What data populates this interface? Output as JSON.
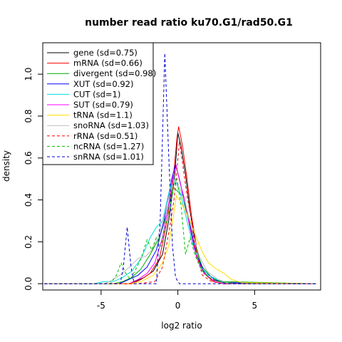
{
  "chart_data": {
    "type": "line",
    "title": "number read ratio ku70.G1/rad50.G1",
    "xlabel": "log2 ratio",
    "ylabel": "density",
    "xlim": [
      -8.8,
      9.3
    ],
    "ylim": [
      -0.03,
      1.15
    ],
    "xticks": [
      -5,
      0,
      5
    ],
    "yticks": [
      0.0,
      0.2,
      0.4,
      0.6,
      0.8,
      1.0
    ],
    "xtick_labels": [
      "-5",
      "0",
      "5"
    ],
    "ytick_labels": [
      "0.0",
      "0.2",
      "0.4",
      "0.6",
      "0.8",
      "1.0"
    ],
    "grid": false,
    "legend_position": "top-left",
    "series": [
      {
        "name": "gene (sd=0.75)",
        "color": "#000000",
        "dash": "solid",
        "points": [
          [
            -8.7,
            0
          ],
          [
            -3.2,
            0
          ],
          [
            -2.8,
            0.01
          ],
          [
            -2.2,
            0.03
          ],
          [
            -1.6,
            0.06
          ],
          [
            -1.0,
            0.14
          ],
          [
            -0.6,
            0.3
          ],
          [
            -0.2,
            0.52
          ],
          [
            0.0,
            0.72
          ],
          [
            0.2,
            0.66
          ],
          [
            0.5,
            0.52
          ],
          [
            0.8,
            0.34
          ],
          [
            1.2,
            0.17
          ],
          [
            1.6,
            0.06
          ],
          [
            2.2,
            0.02
          ],
          [
            3.0,
            0.005
          ],
          [
            9.0,
            0
          ]
        ]
      },
      {
        "name": "mRNA (sd=0.66)",
        "color": "#ff0000",
        "dash": "solid",
        "points": [
          [
            -8.7,
            0
          ],
          [
            -3.0,
            0
          ],
          [
            -2.4,
            0.02
          ],
          [
            -1.8,
            0.05
          ],
          [
            -1.2,
            0.12
          ],
          [
            -0.7,
            0.3
          ],
          [
            -0.3,
            0.5
          ],
          [
            -0.05,
            0.7
          ],
          [
            0.05,
            0.75
          ],
          [
            0.3,
            0.66
          ],
          [
            0.6,
            0.5
          ],
          [
            0.9,
            0.32
          ],
          [
            1.3,
            0.14
          ],
          [
            1.7,
            0.05
          ],
          [
            2.3,
            0.01
          ],
          [
            3.0,
            0
          ],
          [
            9.0,
            0
          ]
        ]
      },
      {
        "name": "divergent (sd=0.98)",
        "color": "#00aa00",
        "dash": "solid",
        "points": [
          [
            -8.7,
            0
          ],
          [
            -4.2,
            0
          ],
          [
            -3.6,
            0.01
          ],
          [
            -3.0,
            0.03
          ],
          [
            -2.4,
            0.07
          ],
          [
            -1.8,
            0.14
          ],
          [
            -1.2,
            0.22
          ],
          [
            -0.6,
            0.36
          ],
          [
            -0.3,
            0.46
          ],
          [
            0.0,
            0.44
          ],
          [
            0.3,
            0.42
          ],
          [
            0.7,
            0.3
          ],
          [
            1.1,
            0.18
          ],
          [
            1.6,
            0.08
          ],
          [
            2.2,
            0.03
          ],
          [
            3.0,
            0.01
          ],
          [
            9.0,
            0
          ]
        ]
      },
      {
        "name": "XUT (sd=0.92)",
        "color": "#0000ff",
        "dash": "solid",
        "points": [
          [
            -8.7,
            0
          ],
          [
            -3.8,
            0
          ],
          [
            -3.2,
            0.02
          ],
          [
            -2.6,
            0.04
          ],
          [
            -2.0,
            0.08
          ],
          [
            -1.4,
            0.16
          ],
          [
            -0.9,
            0.3
          ],
          [
            -0.4,
            0.5
          ],
          [
            -0.15,
            0.57
          ],
          [
            0.1,
            0.5
          ],
          [
            0.4,
            0.4
          ],
          [
            0.8,
            0.28
          ],
          [
            1.2,
            0.14
          ],
          [
            1.7,
            0.06
          ],
          [
            2.4,
            0.02
          ],
          [
            3.2,
            0.005
          ],
          [
            9.0,
            0
          ]
        ]
      },
      {
        "name": "CUT (sd=1)",
        "color": "#00dddd",
        "dash": "solid",
        "points": [
          [
            -8.7,
            0
          ],
          [
            -5.5,
            0
          ],
          [
            -4.8,
            0.01
          ],
          [
            -4.2,
            0.01
          ],
          [
            -3.6,
            0.03
          ],
          [
            -3.0,
            0.06
          ],
          [
            -2.4,
            0.12
          ],
          [
            -1.8,
            0.22
          ],
          [
            -1.4,
            0.27
          ],
          [
            -1.0,
            0.3
          ],
          [
            -0.6,
            0.43
          ],
          [
            -0.35,
            0.5
          ],
          [
            -0.1,
            0.48
          ],
          [
            0.2,
            0.42
          ],
          [
            0.6,
            0.3
          ],
          [
            1.0,
            0.18
          ],
          [
            1.5,
            0.08
          ],
          [
            2.0,
            0.04
          ],
          [
            2.8,
            0.01
          ],
          [
            3.5,
            0
          ],
          [
            9.0,
            0
          ]
        ]
      },
      {
        "name": "SUT (sd=0.79)",
        "color": "#ff00ff",
        "dash": "solid",
        "points": [
          [
            -8.7,
            0
          ],
          [
            -3.2,
            0
          ],
          [
            -2.6,
            0.02
          ],
          [
            -2.0,
            0.05
          ],
          [
            -1.5,
            0.1
          ],
          [
            -1.0,
            0.22
          ],
          [
            -0.6,
            0.38
          ],
          [
            -0.3,
            0.52
          ],
          [
            -0.1,
            0.56
          ],
          [
            0.15,
            0.48
          ],
          [
            0.45,
            0.4
          ],
          [
            0.8,
            0.26
          ],
          [
            1.2,
            0.13
          ],
          [
            1.7,
            0.05
          ],
          [
            2.4,
            0.01
          ],
          [
            3.0,
            0
          ],
          [
            9.0,
            0
          ]
        ]
      },
      {
        "name": "tRNA (sd=1.1)",
        "color": "#ffdd00",
        "dash": "solid",
        "points": [
          [
            -8.7,
            0
          ],
          [
            -3.2,
            0
          ],
          [
            -2.4,
            0.01
          ],
          [
            -1.6,
            0.04
          ],
          [
            -1.0,
            0.1
          ],
          [
            -0.6,
            0.18
          ],
          [
            -0.3,
            0.32
          ],
          [
            -0.1,
            0.42
          ],
          [
            0.1,
            0.4
          ],
          [
            0.4,
            0.36
          ],
          [
            0.8,
            0.3
          ],
          [
            1.2,
            0.22
          ],
          [
            1.6,
            0.15
          ],
          [
            2.0,
            0.1
          ],
          [
            2.5,
            0.07
          ],
          [
            3.0,
            0.05
          ],
          [
            3.5,
            0.02
          ],
          [
            4.2,
            0.005
          ],
          [
            9.0,
            0
          ]
        ]
      },
      {
        "name": "snoRNA (sd=1.03)",
        "color": "#bbbbbb",
        "dash": "solid",
        "points": [
          [
            -8.7,
            0
          ],
          [
            -4.8,
            0
          ],
          [
            -4.2,
            0.02
          ],
          [
            -3.6,
            0.05
          ],
          [
            -3.0,
            0.09
          ],
          [
            -2.6,
            0.12
          ],
          [
            -2.1,
            0.13
          ],
          [
            -1.7,
            0.16
          ],
          [
            -1.3,
            0.22
          ],
          [
            -0.9,
            0.32
          ],
          [
            -0.5,
            0.44
          ],
          [
            -0.2,
            0.5
          ],
          [
            0.1,
            0.46
          ],
          [
            0.5,
            0.38
          ],
          [
            0.9,
            0.26
          ],
          [
            1.4,
            0.13
          ],
          [
            1.9,
            0.06
          ],
          [
            2.6,
            0.02
          ],
          [
            3.4,
            0
          ],
          [
            9.0,
            0
          ]
        ]
      },
      {
        "name": "rRNA (sd=0.51)",
        "color": "#ff0000",
        "dash": "dashed",
        "points": [
          [
            -8.7,
            0
          ],
          [
            -2.6,
            0
          ],
          [
            -1.5,
            0.01
          ],
          [
            -1.0,
            0.08
          ],
          [
            -0.6,
            0.24
          ],
          [
            -0.25,
            0.4
          ],
          [
            -0.05,
            0.55
          ],
          [
            0.1,
            0.68
          ],
          [
            0.35,
            0.55
          ],
          [
            0.6,
            0.42
          ],
          [
            0.9,
            0.3
          ],
          [
            1.1,
            0.18
          ],
          [
            1.3,
            0.12
          ],
          [
            1.6,
            0.04
          ],
          [
            2.2,
            0.01
          ],
          [
            3.0,
            0
          ],
          [
            9.0,
            0
          ]
        ]
      },
      {
        "name": "ncRNA (sd=1.27)",
        "color": "#00bb00",
        "dash": "dashed",
        "points": [
          [
            -8.7,
            0
          ],
          [
            -4.4,
            0
          ],
          [
            -4.0,
            0.04
          ],
          [
            -3.7,
            0.1
          ],
          [
            -3.4,
            0.05
          ],
          [
            -3.1,
            0.02
          ],
          [
            -2.8,
            0.06
          ],
          [
            -2.4,
            0.12
          ],
          [
            -2.0,
            0.21
          ],
          [
            -1.7,
            0.16
          ],
          [
            -1.4,
            0.22
          ],
          [
            -1.1,
            0.18
          ],
          [
            -0.8,
            0.28
          ],
          [
            -0.5,
            0.36
          ],
          [
            -0.25,
            0.47
          ],
          [
            -0.05,
            0.5
          ],
          [
            0.2,
            0.38
          ],
          [
            0.5,
            0.14
          ],
          [
            0.8,
            0.22
          ],
          [
            1.1,
            0.14
          ],
          [
            1.5,
            0.07
          ],
          [
            2.0,
            0.03
          ],
          [
            2.8,
            0.01
          ],
          [
            3.8,
            0
          ],
          [
            9.0,
            0
          ]
        ]
      },
      {
        "name": "snRNA (sd=1.01)",
        "color": "#0000cc",
        "dash": "dashed",
        "points": [
          [
            -8.7,
            0
          ],
          [
            -3.75,
            0
          ],
          [
            -3.55,
            0.08
          ],
          [
            -3.3,
            0.27
          ],
          [
            -3.05,
            0.08
          ],
          [
            -2.85,
            0
          ],
          [
            -1.4,
            0
          ],
          [
            -1.15,
            0.3
          ],
          [
            -0.85,
            1.1
          ],
          [
            -0.6,
            0.62
          ],
          [
            -0.35,
            0.18
          ],
          [
            -0.15,
            0.03
          ],
          [
            0.1,
            0
          ],
          [
            9.0,
            0
          ]
        ]
      }
    ]
  }
}
